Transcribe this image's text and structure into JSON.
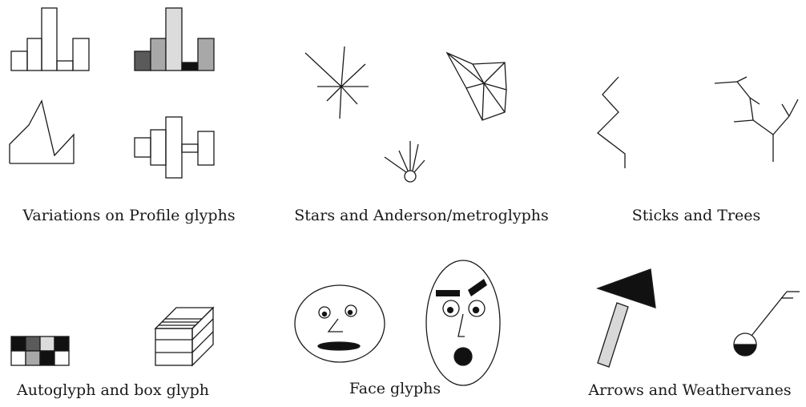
{
  "captions": {
    "profile": "Variations on Profile glyphs",
    "stars": "Stars and Anderson/metroglyphs",
    "sticks": "Sticks and Trees",
    "auto": "Autoglyph and box glyph",
    "faces": "Face glyphs",
    "arrows": "Arrows and Weathervanes"
  },
  "colors": {
    "stroke": "#1a1a1a",
    "dark": "#5a5a5a",
    "mid": "#a8a8a8",
    "light": "#dcdcdc",
    "black": "#111111"
  }
}
